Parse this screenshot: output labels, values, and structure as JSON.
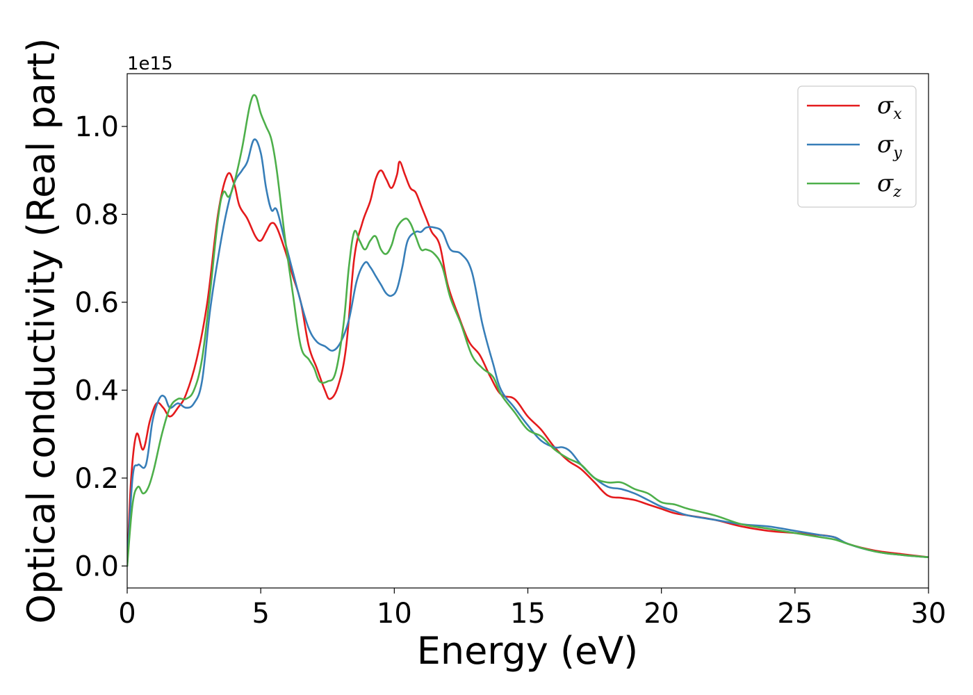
{
  "chart_data": {
    "type": "line",
    "xlabel": "Energy (eV)",
    "ylabel": "Optical conductivity (Real part)",
    "y_offset_text": "1e15",
    "xlim": [
      0,
      30
    ],
    "ylim": [
      -0.05,
      1.12
    ],
    "x_ticks": [
      0,
      5,
      10,
      15,
      20,
      25,
      30
    ],
    "x_tick_labels": [
      "0",
      "5",
      "10",
      "15",
      "20",
      "25",
      "30"
    ],
    "y_ticks": [
      0.0,
      0.2,
      0.4,
      0.6,
      0.8,
      1.0
    ],
    "y_tick_labels": [
      "0.0",
      "0.2",
      "0.4",
      "0.6",
      "0.8",
      "1.0"
    ],
    "grid": false,
    "legend_position": "top-right",
    "series": [
      {
        "name": "σx",
        "symbol": "σ",
        "subscript": "x",
        "color": "#e41a1c",
        "x": [
          0,
          0.15,
          0.35,
          0.6,
          0.85,
          1.1,
          1.35,
          1.6,
          1.9,
          2.2,
          2.6,
          3.0,
          3.4,
          3.75,
          4.0,
          4.2,
          4.5,
          4.8,
          5.0,
          5.2,
          5.4,
          5.6,
          5.9,
          6.2,
          6.5,
          6.8,
          7.1,
          7.4,
          7.6,
          7.9,
          8.2,
          8.5,
          8.8,
          9.1,
          9.3,
          9.5,
          9.7,
          9.9,
          10.1,
          10.2,
          10.4,
          10.6,
          10.8,
          11.0,
          11.2,
          11.4,
          11.7,
          12.0,
          12.4,
          12.8,
          13.2,
          13.6,
          14.0,
          14.5,
          15.0,
          15.5,
          16.0,
          16.5,
          17.0,
          17.5,
          18.0,
          18.5,
          19.0,
          19.5,
          20.0,
          20.5,
          21.0,
          22.0,
          23.0,
          24.0,
          25.0,
          26.0,
          26.5,
          27.0,
          28.0,
          29.0,
          30.0
        ],
        "y": [
          0.0,
          0.2,
          0.3,
          0.265,
          0.33,
          0.37,
          0.36,
          0.34,
          0.36,
          0.39,
          0.47,
          0.6,
          0.8,
          0.89,
          0.87,
          0.82,
          0.79,
          0.75,
          0.74,
          0.76,
          0.78,
          0.77,
          0.72,
          0.66,
          0.6,
          0.5,
          0.45,
          0.4,
          0.38,
          0.41,
          0.5,
          0.7,
          0.78,
          0.83,
          0.88,
          0.9,
          0.88,
          0.86,
          0.89,
          0.92,
          0.89,
          0.86,
          0.85,
          0.82,
          0.79,
          0.76,
          0.73,
          0.64,
          0.57,
          0.51,
          0.48,
          0.43,
          0.39,
          0.38,
          0.34,
          0.31,
          0.27,
          0.24,
          0.22,
          0.19,
          0.16,
          0.155,
          0.15,
          0.14,
          0.13,
          0.12,
          0.115,
          0.105,
          0.09,
          0.08,
          0.075,
          0.07,
          0.065,
          0.05,
          0.035,
          0.027,
          0.02
        ]
      },
      {
        "name": "σy",
        "symbol": "σ",
        "subscript": "y",
        "color": "#377eb8",
        "x": [
          0,
          0.2,
          0.4,
          0.7,
          0.95,
          1.2,
          1.4,
          1.6,
          1.9,
          2.2,
          2.5,
          2.8,
          3.1,
          3.4,
          3.7,
          4.0,
          4.3,
          4.5,
          4.75,
          5.0,
          5.2,
          5.4,
          5.6,
          5.9,
          6.2,
          6.5,
          6.8,
          7.1,
          7.4,
          7.7,
          8.0,
          8.3,
          8.6,
          8.9,
          9.1,
          9.3,
          9.5,
          9.7,
          9.9,
          10.1,
          10.3,
          10.5,
          10.8,
          11.0,
          11.2,
          11.5,
          11.8,
          12.1,
          12.5,
          12.9,
          13.3,
          13.7,
          14.0,
          14.5,
          15.0,
          15.5,
          16.0,
          16.3,
          16.6,
          17.0,
          17.5,
          18.0,
          18.5,
          19.0,
          19.5,
          20.0,
          20.5,
          21.0,
          22.0,
          23.0,
          24.0,
          25.0,
          26.0,
          26.5,
          27.0,
          28.0,
          29.0,
          30.0
        ],
        "y": [
          0.0,
          0.2,
          0.23,
          0.23,
          0.33,
          0.38,
          0.385,
          0.36,
          0.37,
          0.36,
          0.37,
          0.42,
          0.58,
          0.7,
          0.8,
          0.87,
          0.9,
          0.92,
          0.97,
          0.94,
          0.86,
          0.81,
          0.81,
          0.74,
          0.67,
          0.6,
          0.54,
          0.51,
          0.5,
          0.49,
          0.51,
          0.56,
          0.65,
          0.69,
          0.68,
          0.66,
          0.64,
          0.62,
          0.615,
          0.63,
          0.68,
          0.74,
          0.76,
          0.76,
          0.77,
          0.77,
          0.76,
          0.72,
          0.71,
          0.67,
          0.55,
          0.46,
          0.4,
          0.36,
          0.32,
          0.285,
          0.27,
          0.27,
          0.26,
          0.23,
          0.2,
          0.18,
          0.175,
          0.165,
          0.15,
          0.135,
          0.125,
          0.115,
          0.105,
          0.095,
          0.09,
          0.08,
          0.07,
          0.065,
          0.05,
          0.033,
          0.025,
          0.02
        ]
      },
      {
        "name": "σz",
        "symbol": "σ",
        "subscript": "z",
        "color": "#4daf4a",
        "x": [
          0,
          0.2,
          0.4,
          0.6,
          0.8,
          1.0,
          1.3,
          1.6,
          1.9,
          2.2,
          2.5,
          2.8,
          3.1,
          3.4,
          3.6,
          3.8,
          4.0,
          4.3,
          4.6,
          4.8,
          5.0,
          5.2,
          5.4,
          5.6,
          5.9,
          6.2,
          6.5,
          6.8,
          7.0,
          7.2,
          7.5,
          7.8,
          8.1,
          8.3,
          8.5,
          8.7,
          8.9,
          9.1,
          9.3,
          9.5,
          9.7,
          9.9,
          10.1,
          10.4,
          10.6,
          10.8,
          11.0,
          11.2,
          11.5,
          11.8,
          12.1,
          12.5,
          12.9,
          13.3,
          13.7,
          14.0,
          14.5,
          15.0,
          15.5,
          16.0,
          16.5,
          17.0,
          17.5,
          18.0,
          18.5,
          19.0,
          19.5,
          20.0,
          20.5,
          21.0,
          22.0,
          23.0,
          24.0,
          25.0,
          26.0,
          26.5,
          27.0,
          28.0,
          29.0,
          30.0
        ],
        "y": [
          0.0,
          0.14,
          0.18,
          0.165,
          0.18,
          0.22,
          0.3,
          0.36,
          0.38,
          0.38,
          0.4,
          0.47,
          0.62,
          0.79,
          0.85,
          0.84,
          0.87,
          0.95,
          1.05,
          1.07,
          1.03,
          1.0,
          0.97,
          0.9,
          0.75,
          0.62,
          0.5,
          0.47,
          0.45,
          0.42,
          0.42,
          0.44,
          0.55,
          0.68,
          0.76,
          0.74,
          0.72,
          0.74,
          0.75,
          0.72,
          0.71,
          0.73,
          0.77,
          0.79,
          0.78,
          0.75,
          0.72,
          0.72,
          0.71,
          0.68,
          0.61,
          0.55,
          0.48,
          0.45,
          0.43,
          0.39,
          0.35,
          0.31,
          0.295,
          0.265,
          0.245,
          0.23,
          0.2,
          0.19,
          0.19,
          0.175,
          0.165,
          0.145,
          0.14,
          0.13,
          0.115,
          0.095,
          0.085,
          0.075,
          0.065,
          0.06,
          0.05,
          0.033,
          0.025,
          0.02
        ]
      }
    ]
  }
}
